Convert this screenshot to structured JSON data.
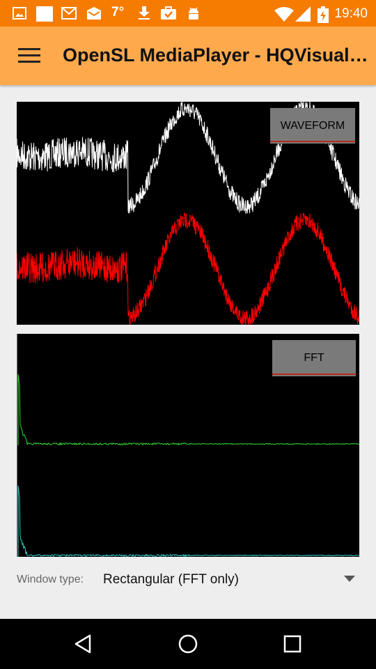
{
  "status_bar": {
    "time": "19:40",
    "temperature": "7°",
    "icons": [
      "image-icon",
      "blank-notification-icon",
      "gmail-icon",
      "mail-icon",
      "weather-icon",
      "download-icon",
      "briefcase-check-icon",
      "android-icon",
      "wifi-icon",
      "signal-icon",
      "battery-charging-icon"
    ]
  },
  "app_bar": {
    "title": "OpenSL MediaPlayer - HQVisualizer"
  },
  "waveform_panel": {
    "button_label": "WAVEFORM",
    "colors": {
      "channel_left": "#ffffff",
      "channel_right": "#ff0000"
    }
  },
  "fft_panel": {
    "button_label": "FFT",
    "colors": {
      "channel_left": "#33dd33",
      "channel_right": "#33cccc"
    }
  },
  "window_type": {
    "label": "Window type:",
    "value": "Rectangular (FFT only)"
  },
  "colors": {
    "status_bar": "#f57c00",
    "app_bar": "#ffa94d",
    "button_underline": "#b52a1c"
  },
  "nav_bar": {
    "icons": [
      "back-icon",
      "home-icon",
      "recents-icon"
    ]
  }
}
